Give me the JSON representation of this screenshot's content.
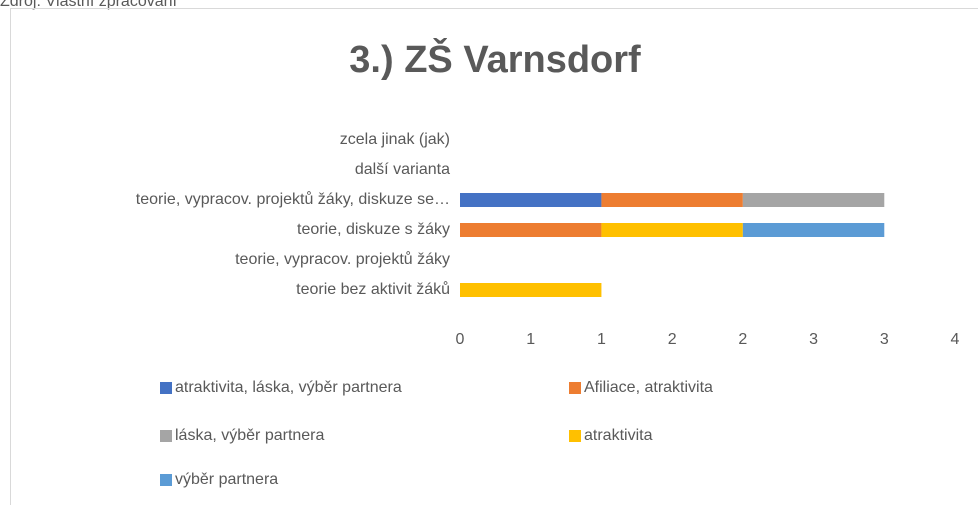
{
  "source": "Zdroj: Vlastní zpracování",
  "chart_data": {
    "type": "stacked-barh",
    "title": "3.) ZŠ Varnsdorf",
    "categories": [
      "teorie bez aktivit žáků",
      "teorie, vypracov. projektů žáky",
      "teorie, diskuze s žáky",
      "teorie, vypracov. projektů žáky, diskuze se…",
      "další varianta",
      "zcela jinak (jak)"
    ],
    "series": [
      {
        "name": "atraktivita, láska, výběr partnera",
        "color": "#4472c4",
        "values": [
          null,
          null,
          null,
          1,
          null,
          null
        ]
      },
      {
        "name": "Afiliace, atraktivita",
        "color": "#ed7d31",
        "values": [
          null,
          null,
          1,
          1,
          null,
          null
        ]
      },
      {
        "name": "láska, výběr partnera",
        "color": "#a5a5a5",
        "values": [
          null,
          null,
          null,
          1,
          null,
          null
        ]
      },
      {
        "name": "atraktivita",
        "color": "#ffc000",
        "values": [
          1,
          null,
          1,
          null,
          null,
          null
        ]
      },
      {
        "name": "výběr partnera",
        "color": "#5b9bd5",
        "values": [
          null,
          null,
          1,
          null,
          null,
          null
        ]
      }
    ],
    "xlim": [
      0,
      3.5
    ],
    "xticks": [
      0,
      {
        "value": 0.5,
        "label": "1"
      },
      1,
      {
        "value": 1.5,
        "label": "2"
      },
      2,
      {
        "value": 2.5,
        "label": "3"
      },
      3,
      {
        "value": 3.5,
        "label": "4"
      }
    ],
    "legend": "bottom"
  }
}
